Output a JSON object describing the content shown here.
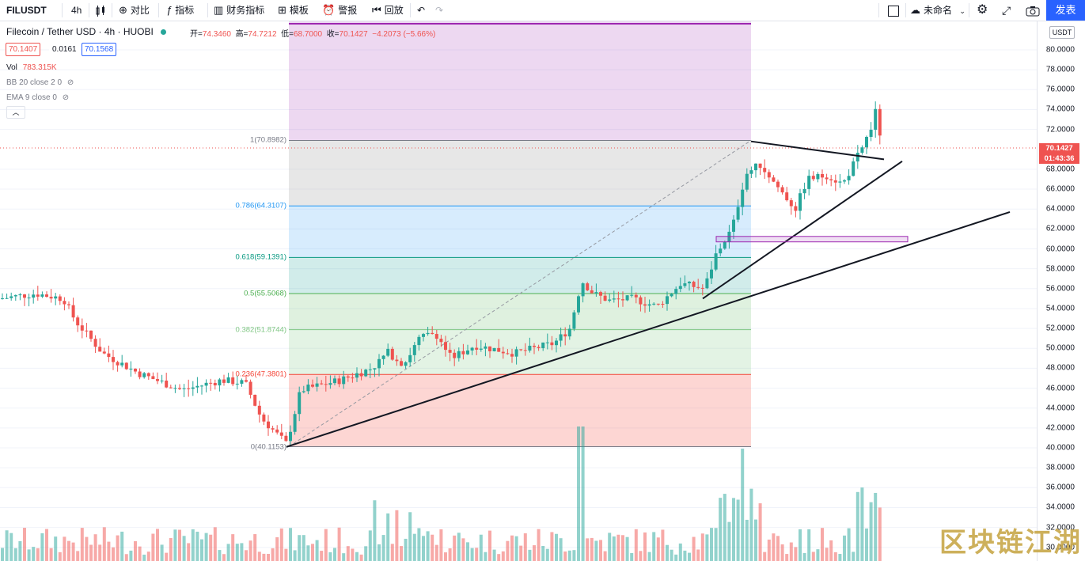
{
  "toolbar": {
    "symbol": "FILUSDT",
    "interval": "4h",
    "compare": "对比",
    "indicators": "指标",
    "financials": "财务指标",
    "templates": "模板",
    "alert": "警报",
    "replay": "回放",
    "layout_name": "未命名",
    "publish": "发表"
  },
  "legend": {
    "title": "Filecoin / Tether USD · 4h · HUOBI",
    "open_label": "开=",
    "open": "74.3460",
    "high_label": "高=",
    "high": "74.7212",
    "low_label": "低=",
    "low": "68.7000",
    "close_label": "收=",
    "close": "70.1427",
    "change": "−4.2073 (−5.66%)",
    "bid": "70.1407",
    "spread": "0.0161",
    "ask": "70.1568",
    "vol_label": "Vol",
    "vol_value": "783.315K",
    "bb": "BB 20 close 2 0",
    "ema": "EMA 9 close 0"
  },
  "axis": {
    "currency": "USDT",
    "ticks": [
      "80.0000",
      "78.0000",
      "76.0000",
      "74.0000",
      "72.0000",
      "68.0000",
      "66.0000",
      "64.0000",
      "62.0000",
      "60.0000",
      "58.0000",
      "56.0000",
      "54.0000",
      "52.0000",
      "50.0000",
      "48.0000",
      "46.0000",
      "44.0000",
      "42.0000",
      "40.0000",
      "38.0000",
      "36.0000",
      "34.0000",
      "32.0000",
      "30.0000"
    ],
    "last_price": "70.1427",
    "countdown": "01:43:36"
  },
  "fib": [
    {
      "label": "1(70.8982)",
      "price": 70.8982,
      "color": "#787b86"
    },
    {
      "label": "0.786(64.3107)",
      "price": 64.3107,
      "color": "#2196f3"
    },
    {
      "label": "0.618(59.1391)",
      "price": 59.1391,
      "color": "#089981"
    },
    {
      "label": "0.5(55.5068)",
      "price": 55.5068,
      "color": "#4caf50"
    },
    {
      "label": "0.382(51.8744)",
      "price": 51.8744,
      "color": "#81c784"
    },
    {
      "label": "0.236(47.3801)",
      "price": 47.3801,
      "color": "#f44336"
    },
    {
      "label": "0(40.1153)",
      "price": 40.1153,
      "color": "#787b86"
    }
  ],
  "colors": {
    "up": "#26a69a",
    "down": "#ef5350",
    "accent": "#2962ff"
  },
  "watermark": "区块链江湖"
}
